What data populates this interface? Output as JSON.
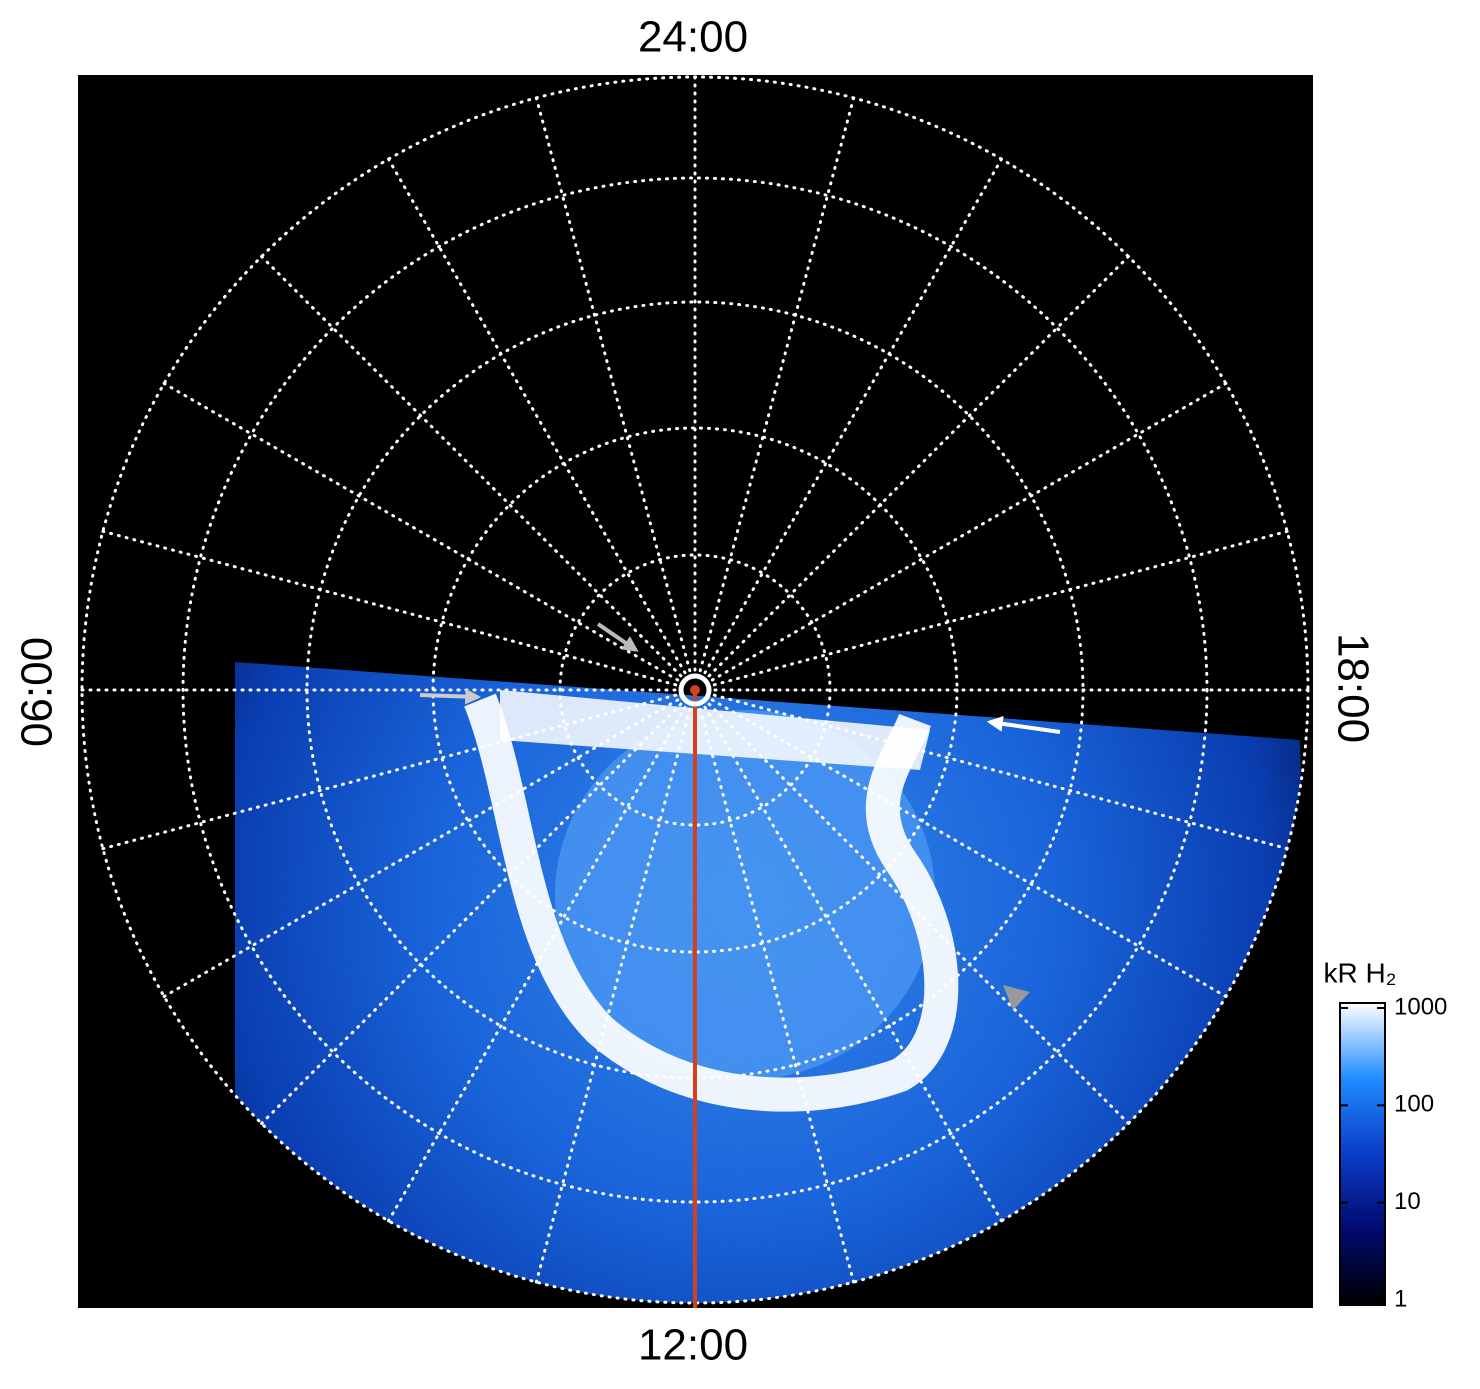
{
  "chart_data": {
    "type": "polar",
    "local_time_labels": {
      "top": "24:00",
      "left": "06:00",
      "right": "18:00",
      "bottom": "12:00"
    },
    "colorbar": {
      "label": "kR H₂",
      "lim": [
        1,
        1000
      ],
      "ticks": [
        1,
        10,
        100,
        1000
      ],
      "log": true,
      "colors": [
        "#000000",
        "#000a6e",
        "#0a3cc8",
        "#1e8cff",
        "#ffffff"
      ]
    }
  }
}
